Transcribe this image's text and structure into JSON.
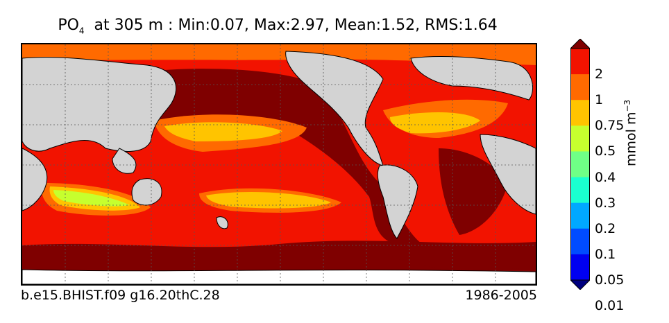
{
  "title": {
    "variable": "PO",
    "subscript": "4",
    "rest": "  at 305 m : Min:0.07, Max:2.97, Mean:1.52, RMS:1.64"
  },
  "footer": {
    "case_name": "b.e15.BHIST.f09 g16.20thC.28",
    "period": "1986-2005"
  },
  "colorbar": {
    "unit_main": "mmol m",
    "unit_exp": "−3",
    "labels": [
      "2",
      "1",
      "0.75",
      "0.5",
      "0.4",
      "0.3",
      "0.2",
      "0.1",
      "0.05",
      "0.01"
    ],
    "colors": [
      "#7f0000",
      "#f21300",
      "#ff6a00",
      "#ffc400",
      "#c6ff2e",
      "#6fff86",
      "#1affd0",
      "#00a8ff",
      "#004cff",
      "#0000f1",
      "#00007f"
    ],
    "extend": "both"
  },
  "map": {
    "land_color": "#d3d3d3",
    "grid": true
  }
}
